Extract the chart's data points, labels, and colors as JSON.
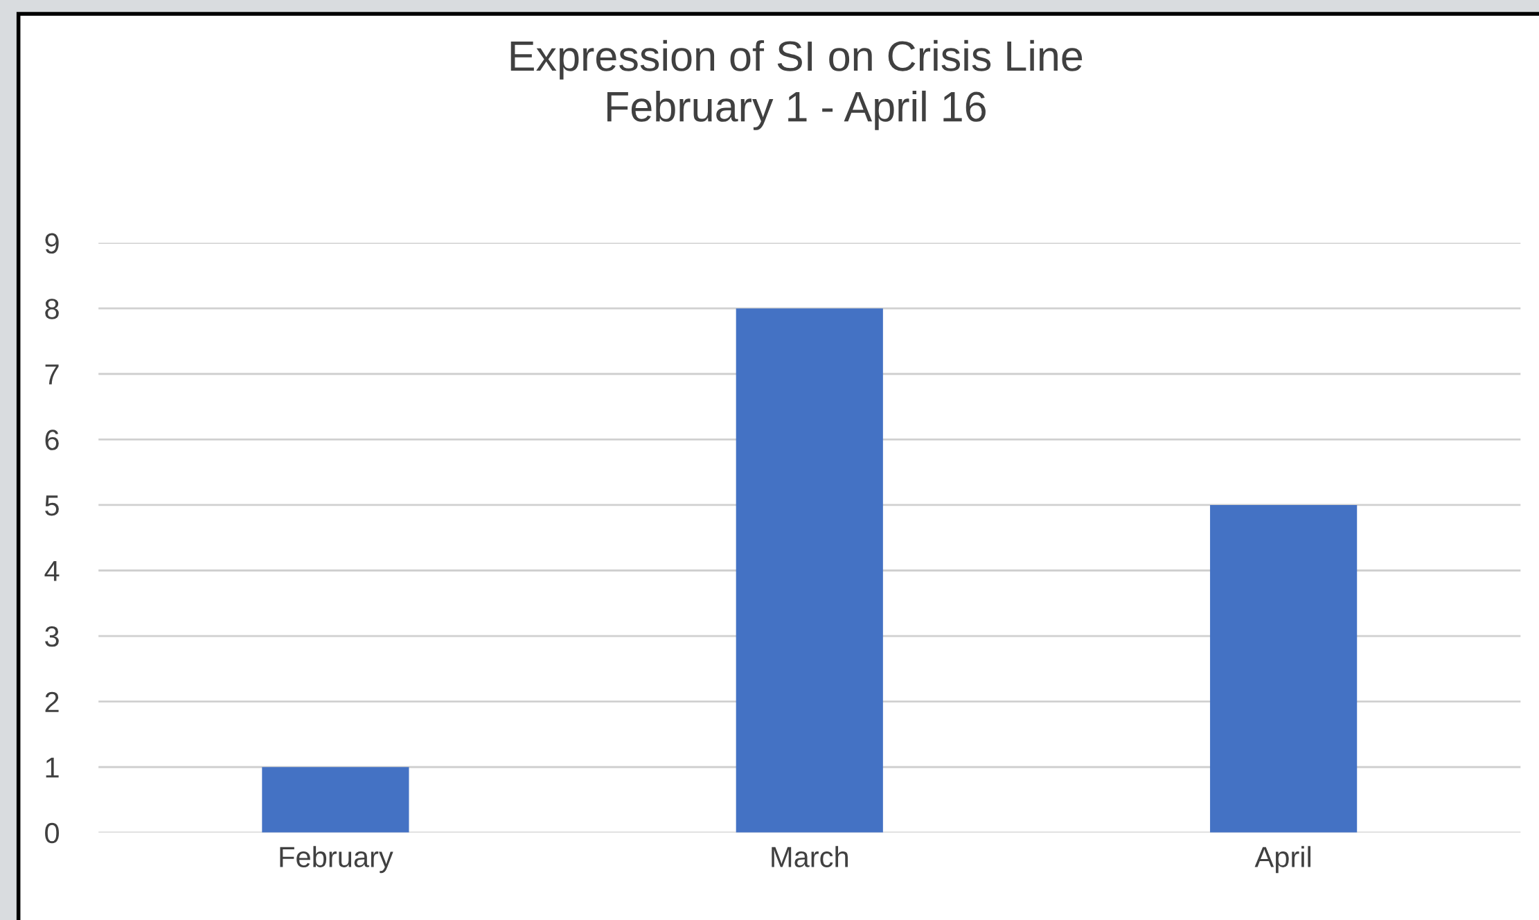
{
  "chart_data": {
    "type": "bar",
    "title": "Expression of SI on Crisis Line",
    "subtitle": "February 1 - April 16",
    "categories": [
      "February",
      "March",
      "April"
    ],
    "values": [
      1,
      8,
      5
    ],
    "color": "#4472c4",
    "ylim": [
      0,
      9
    ],
    "yticks": [
      0,
      1,
      2,
      3,
      4,
      5,
      6,
      7,
      8,
      9
    ],
    "grid": "y"
  }
}
